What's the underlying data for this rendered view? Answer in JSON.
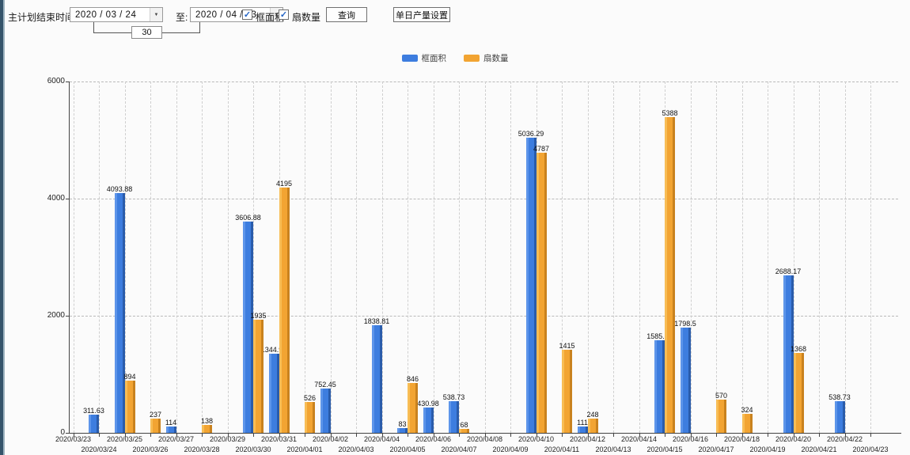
{
  "toolbar": {
    "end_time_label": "主计划结束时间:",
    "date_from": "2020 / 03 / 24",
    "to_label": "至:",
    "date_to": "2020 / 04 / 23",
    "days_value": "30",
    "checkbox_area": {
      "label": "框面积",
      "checked": true
    },
    "checkbox_fan": {
      "label": "扇数量",
      "checked": true
    },
    "query_button": "查询",
    "daily_output_button": "单日产量设置",
    "check_glyph": "✓",
    "dropdown_glyph": "▼"
  },
  "legend": {
    "items": [
      {
        "label": "框面积",
        "color": "#3d7ddf"
      },
      {
        "label": "扇数量",
        "color": "#f2a432"
      }
    ]
  },
  "chart_data": {
    "type": "bar",
    "title": "",
    "xlabel": "",
    "ylabel": "",
    "ylim": [
      0,
      6000
    ],
    "yticks": [
      0,
      2000,
      4000,
      6000
    ],
    "grid": true,
    "legend_position": "top",
    "categories": [
      "2020/03/23",
      "2020/03/24",
      "2020/03/25",
      "2020/03/26",
      "2020/03/27",
      "2020/03/28",
      "2020/03/29",
      "2020/03/30",
      "2020/03/31",
      "2020/04/01",
      "2020/04/02",
      "2020/04/03",
      "2020/04/04",
      "2020/04/05",
      "2020/04/06",
      "2020/04/07",
      "2020/04/08",
      "2020/04/09",
      "2020/04/10",
      "2020/04/11",
      "2020/04/12",
      "2020/04/13",
      "2020/04/14",
      "2020/04/15",
      "2020/04/16",
      "2020/04/17",
      "2020/04/18",
      "2020/04/19",
      "2020/04/20",
      "2020/04/21",
      "2020/04/22",
      "2020/04/23"
    ],
    "series": [
      {
        "name": "框面积",
        "color": "#3d7ddf",
        "values": [
          null,
          311.63,
          4093.88,
          null,
          114,
          null,
          null,
          3606.88,
          1344.95,
          null,
          752.45,
          null,
          1838.81,
          83,
          430.98,
          538.73,
          null,
          null,
          5036.29,
          null,
          111,
          null,
          null,
          1585.96,
          1798.5,
          null,
          null,
          null,
          2688.17,
          null,
          538.73,
          null
        ]
      },
      {
        "name": "扇数量",
        "color": "#f2a432",
        "values": [
          null,
          null,
          894,
          237,
          null,
          138,
          null,
          1935,
          4195,
          526,
          null,
          null,
          null,
          846,
          null,
          68,
          null,
          null,
          4787,
          1415,
          248,
          null,
          null,
          5388,
          null,
          570,
          324,
          null,
          1368,
          null,
          null,
          null
        ]
      }
    ]
  }
}
